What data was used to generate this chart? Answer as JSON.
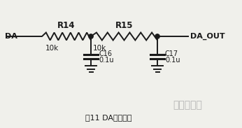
{
  "bg_color": "#f0f0eb",
  "line_color": "#1a1a1a",
  "text_color": "#1a1a1a",
  "title": "图11 DA转换电路",
  "watermark": "深圳宏力捷",
  "label_DA": "DA",
  "label_DA_OUT": "DA_OUT",
  "label_R14": "R14",
  "label_R15": "R15",
  "label_10k_1": "10k",
  "label_10k_2": "10k",
  "label_C16": "C16",
  "label_C16_val": "0.1u",
  "label_C17": "C17",
  "label_C17_val": "0.1u",
  "figsize": [
    3.46,
    1.83
  ],
  "dpi": 100
}
